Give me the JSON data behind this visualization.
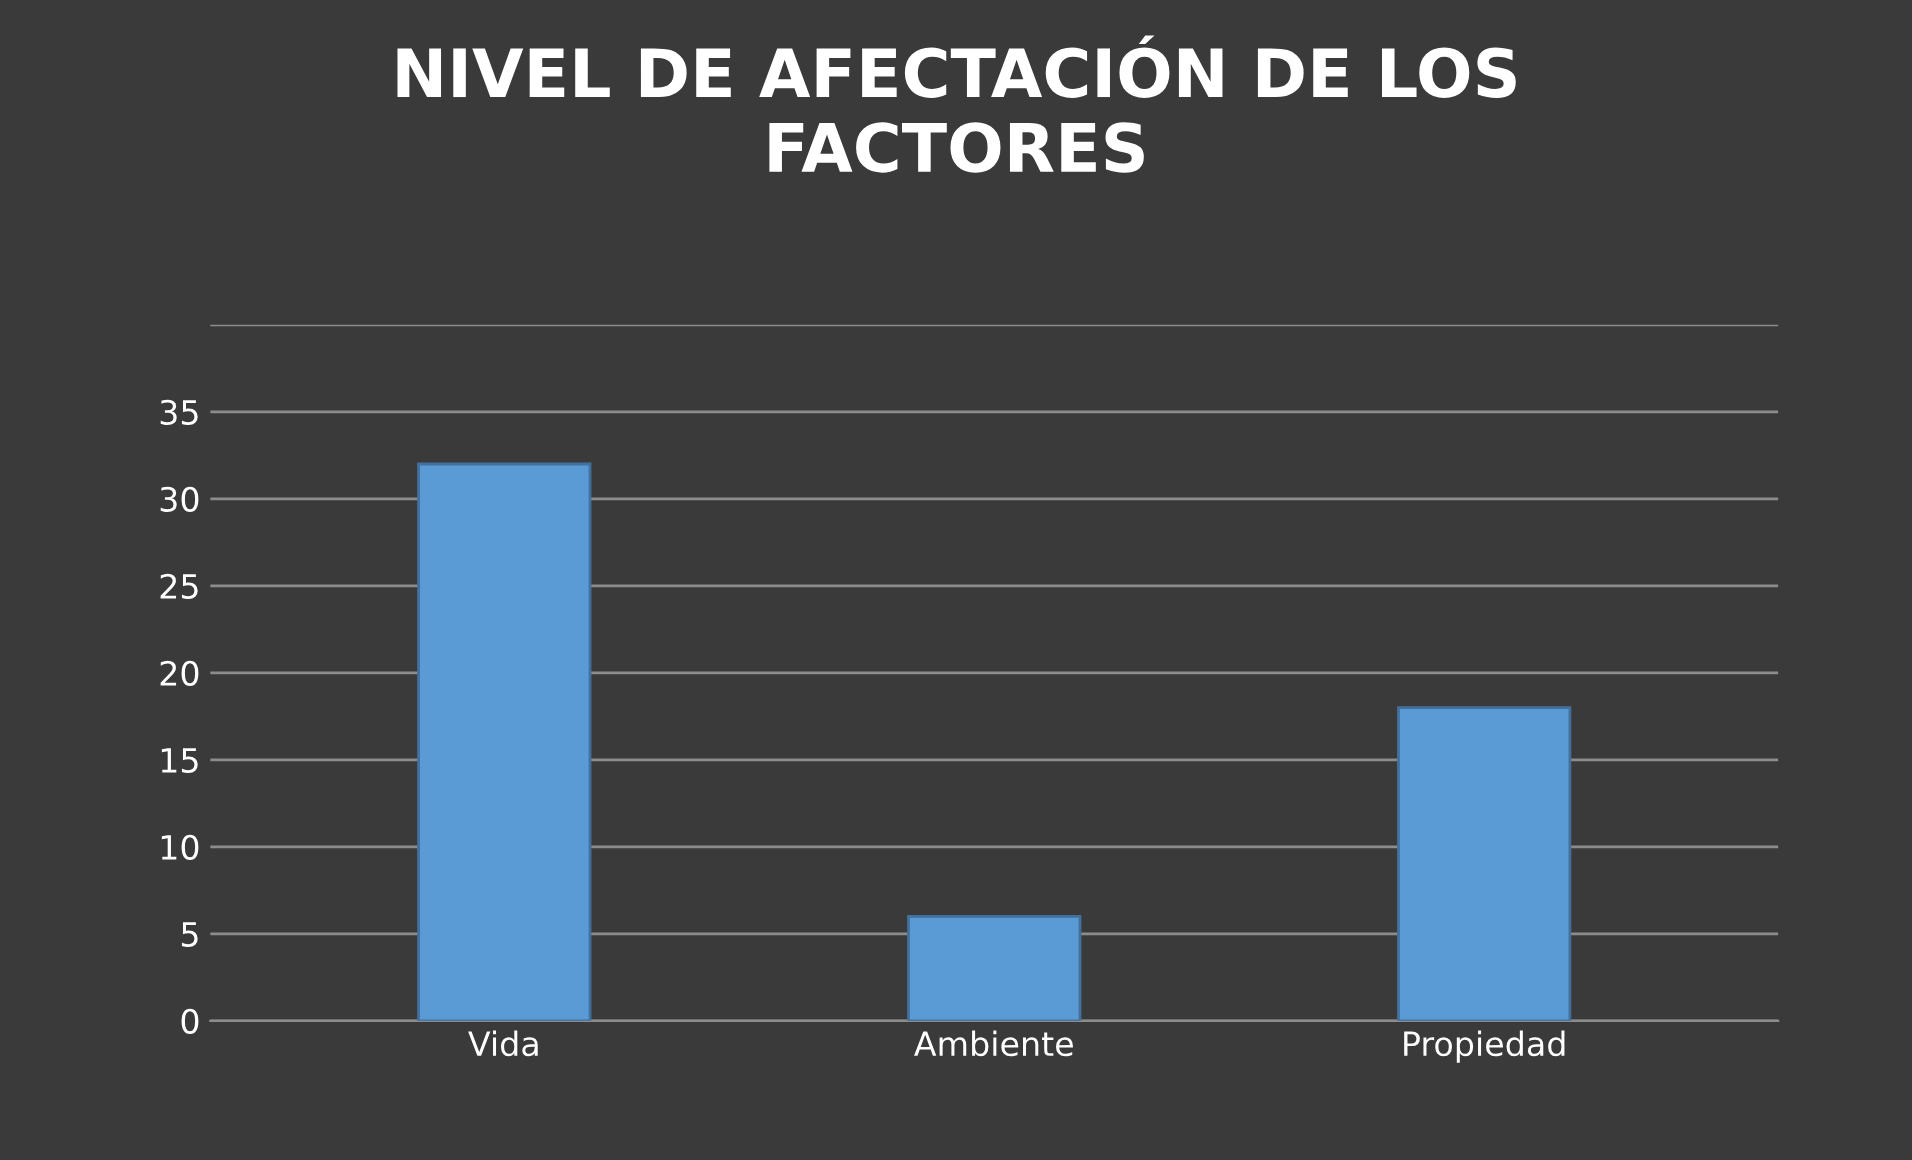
{
  "chart_data": {
    "type": "bar",
    "title": "NIVEL DE AFECTACIÓN DE LOS\nFACTORES",
    "categories": [
      "Vida",
      "Ambiente",
      "Propiedad"
    ],
    "values": [
      32,
      6,
      18
    ],
    "color": "#5b9bd5",
    "ylim": [
      0,
      40
    ],
    "yticks": [
      0,
      5,
      10,
      15,
      20,
      25,
      30,
      35,
      {
        "value": 40,
        "label": null
      }
    ],
    "grid": "y"
  }
}
